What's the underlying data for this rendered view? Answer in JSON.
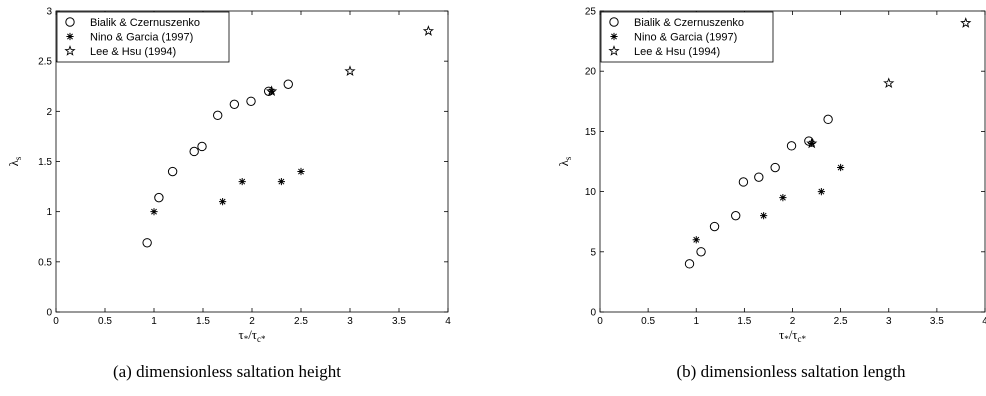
{
  "chart_data": [
    {
      "type": "scatter",
      "caption": "(a) dimensionless saltation height",
      "xlabel": "τ*/τc*",
      "ylabel": "λs",
      "xlim": [
        0,
        4
      ],
      "ylim": [
        0,
        3
      ],
      "xticks": [
        "0",
        "0.5",
        "1",
        "1.5",
        "2",
        "2.5",
        "3",
        "3.5",
        "4"
      ],
      "yticks": [
        "0",
        "0.5",
        "1",
        "1.5",
        "2",
        "2.5",
        "3"
      ],
      "xtick_values": [
        0,
        0.5,
        1,
        1.5,
        2,
        2.5,
        3,
        3.5,
        4
      ],
      "ytick_values": [
        0,
        0.5,
        1,
        1.5,
        2,
        2.5,
        3
      ],
      "grid": false,
      "legend_position": "top-left",
      "series": [
        {
          "name": "Bialik & Czernuszenko",
          "marker": "circle",
          "points": [
            [
              0.93,
              0.69
            ],
            [
              1.05,
              1.14
            ],
            [
              1.19,
              1.4
            ],
            [
              1.41,
              1.6
            ],
            [
              1.49,
              1.65
            ],
            [
              1.65,
              1.96
            ],
            [
              1.82,
              2.07
            ],
            [
              1.99,
              2.1
            ],
            [
              2.17,
              2.2
            ],
            [
              2.37,
              2.27
            ]
          ]
        },
        {
          "name": "Nino & Garcia (1997)",
          "marker": "asterisk",
          "points": [
            [
              1.0,
              1.0
            ],
            [
              1.7,
              1.1
            ],
            [
              1.9,
              1.3
            ],
            [
              2.3,
              1.3
            ],
            [
              2.5,
              1.4
            ],
            [
              2.2,
              2.2
            ]
          ]
        },
        {
          "name": "Lee & Hsu (1994)",
          "marker": "star",
          "points": [
            [
              2.2,
              2.2
            ],
            [
              3.0,
              2.4
            ],
            [
              3.8,
              2.8
            ]
          ]
        }
      ]
    },
    {
      "type": "scatter",
      "caption": "(b) dimensionless saltation length",
      "xlabel": "τ*/τc*",
      "ylabel": "λs",
      "xlim": [
        0,
        4
      ],
      "ylim": [
        0,
        25
      ],
      "xticks": [
        "0",
        "0.5",
        "1",
        "1.5",
        "2",
        "2.5",
        "3",
        "3.5",
        "4"
      ],
      "yticks": [
        "0",
        "5",
        "10",
        "15",
        "20",
        "25"
      ],
      "xtick_values": [
        0,
        0.5,
        1,
        1.5,
        2,
        2.5,
        3,
        3.5,
        4
      ],
      "ytick_values": [
        0,
        5,
        10,
        15,
        20,
        25
      ],
      "grid": false,
      "legend_position": "top-left",
      "series": [
        {
          "name": "Bialik & Czernuszenko",
          "marker": "circle",
          "points": [
            [
              0.93,
              4.0
            ],
            [
              1.05,
              5.0
            ],
            [
              1.19,
              7.1
            ],
            [
              1.41,
              8.0
            ],
            [
              1.49,
              10.8
            ],
            [
              1.65,
              11.2
            ],
            [
              1.82,
              12.0
            ],
            [
              1.99,
              13.8
            ],
            [
              2.17,
              14.2
            ],
            [
              2.37,
              16.0
            ]
          ]
        },
        {
          "name": "Nino & Garcia (1997)",
          "marker": "asterisk",
          "points": [
            [
              1.0,
              6.0
            ],
            [
              1.7,
              8.0
            ],
            [
              1.9,
              9.5
            ],
            [
              2.3,
              10.0
            ],
            [
              2.5,
              12.0
            ],
            [
              2.2,
              14.0
            ]
          ]
        },
        {
          "name": "Lee & Hsu (1994)",
          "marker": "star",
          "points": [
            [
              2.2,
              14.0
            ],
            [
              3.0,
              19.0
            ],
            [
              3.8,
              24.0
            ]
          ]
        }
      ]
    }
  ]
}
